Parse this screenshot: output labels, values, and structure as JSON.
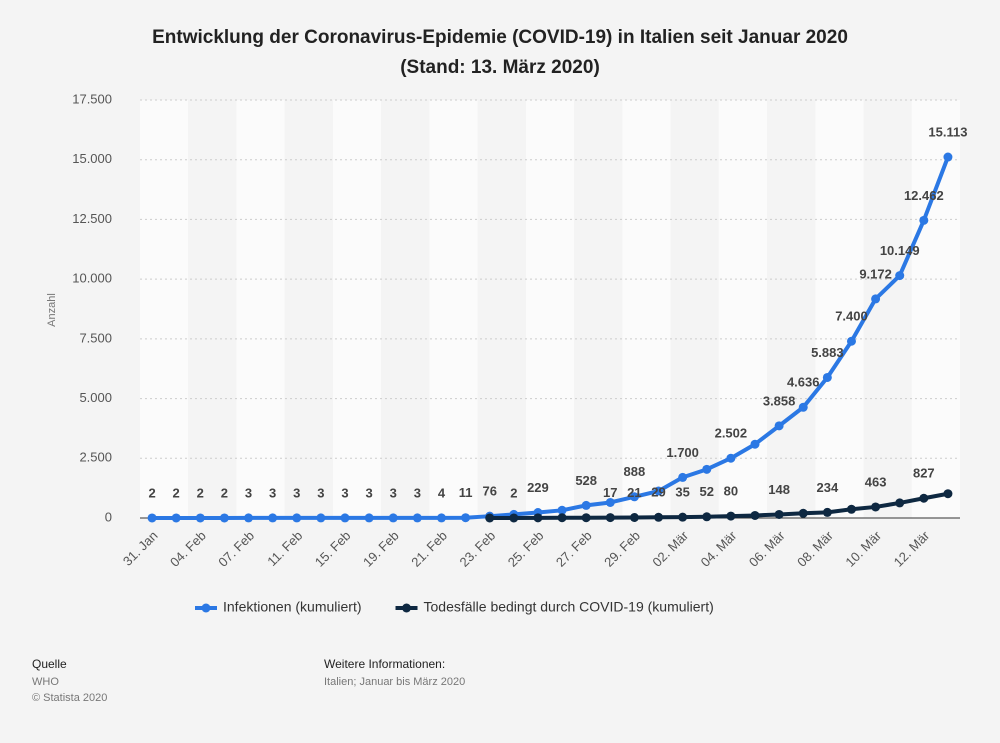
{
  "chart_data": {
    "type": "line",
    "title": "Entwicklung der Coronavirus-Epidemie (COVID-19) in Italien seit Januar 2020",
    "subtitle": "(Stand: 13. März 2020)",
    "y_label": "Anzahl",
    "categories": [
      "31. Jan",
      null,
      "04. Feb",
      null,
      "07. Feb",
      null,
      "11. Feb",
      null,
      "15. Feb",
      null,
      "19. Feb",
      null,
      "21. Feb",
      null,
      "23. Feb",
      null,
      "25. Feb",
      null,
      "27. Feb",
      null,
      "29. Feb",
      null,
      "02. Mär",
      null,
      "04. Mär",
      null,
      "06. Mär",
      null,
      "08. Mär",
      null,
      "10. Mär",
      null,
      "12. Mär",
      null
    ],
    "series": [
      {
        "name": "Infektionen (kumuliert)",
        "color": "#2b78e4",
        "values": [
          2,
          2,
          2,
          2,
          3,
          3,
          3,
          3,
          3,
          3,
          3,
          3,
          4,
          11,
          76,
          150,
          229,
          322,
          528,
          650,
          888,
          1128,
          1700,
          2036,
          2502,
          3089,
          3858,
          4636,
          5883,
          7400,
          9172,
          10149,
          12462,
          15113
        ],
        "value_labels": [
          "2",
          "2",
          "2",
          "2",
          "3",
          "3",
          "3",
          "3",
          "3",
          "3",
          "3",
          "3",
          "4",
          "11",
          "76",
          null,
          "229",
          null,
          "528",
          null,
          "888",
          null,
          "1.700",
          null,
          "2.502",
          null,
          "3.858",
          "4.636",
          "5.883",
          "7.400",
          "9.172",
          "10.149",
          "12.462",
          "15.113"
        ]
      },
      {
        "name": "Todesfälle bedingt durch COVID-19 (kumuliert)",
        "color": "#0e2841",
        "values": [
          null,
          null,
          null,
          null,
          null,
          null,
          null,
          null,
          null,
          null,
          null,
          null,
          null,
          null,
          1,
          2,
          6,
          11,
          12,
          17,
          21,
          29,
          35,
          52,
          80,
          107,
          148,
          197,
          234,
          366,
          463,
          631,
          827,
          1016
        ],
        "value_labels": [
          null,
          null,
          null,
          null,
          null,
          null,
          null,
          null,
          null,
          null,
          null,
          null,
          null,
          null,
          null,
          "2",
          null,
          null,
          null,
          "17",
          "21",
          "29",
          "35",
          "52",
          "80",
          null,
          "148",
          null,
          "234",
          null,
          "463",
          null,
          "827",
          null
        ]
      }
    ],
    "ylim": [
      0,
      17500
    ],
    "yticks": [
      0,
      {
        "value": 2500,
        "label": "2.500"
      },
      {
        "value": 5000,
        "label": "5.000"
      },
      {
        "value": 7500,
        "label": "7.500"
      },
      {
        "value": 10000,
        "label": "10.000"
      },
      {
        "value": 12500,
        "label": "12.500"
      },
      {
        "value": 15000,
        "label": "15.000"
      },
      {
        "value": 17500,
        "label": "17.500"
      }
    ],
    "grid": true
  },
  "footer": {
    "source_label": "Quelle",
    "source": "WHO",
    "copyright": "© Statista 2020",
    "info_label": "Weitere Informationen:",
    "info": "Italien; Januar bis März 2020"
  }
}
